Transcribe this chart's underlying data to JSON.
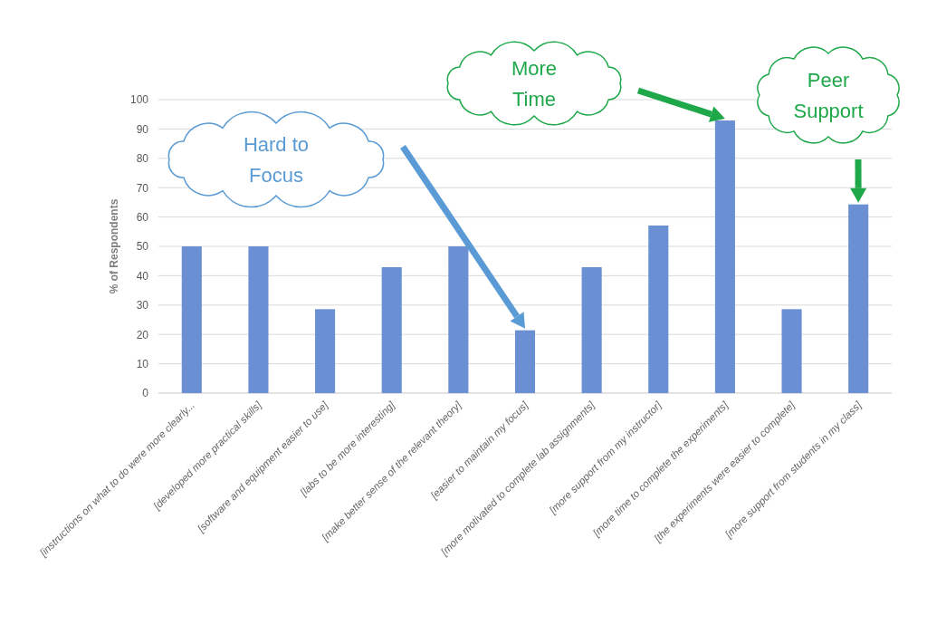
{
  "chart_data": {
    "type": "bar",
    "ylabel": "% of Respondents",
    "categories": [
      "[instructions on what to do were more clearly...",
      "[developed more practical skills]",
      "[software and equipment easier to use]",
      "[labs to be more interesting]",
      "[make better sense of the relevant theory]",
      "[easier to maintain my focus]",
      "[more motivated to complete lab assignments]",
      "[more support from my instructor]",
      "[more time to complete the experiments]",
      "[the experiments were easier to complete]",
      "[more support from students in my class]"
    ],
    "values": [
      50,
      50,
      28.6,
      42.9,
      50,
      21.4,
      42.9,
      57.1,
      92.9,
      28.6,
      64.3
    ],
    "color": "#6a8fd2",
    "ylim": [
      0,
      100
    ],
    "yticks": [
      0,
      10,
      20,
      30,
      40,
      50,
      60,
      70,
      80,
      90,
      100
    ],
    "grid": "y",
    "annotations": [
      "Hard to Focus",
      "More Time",
      "Peer Support"
    ]
  }
}
